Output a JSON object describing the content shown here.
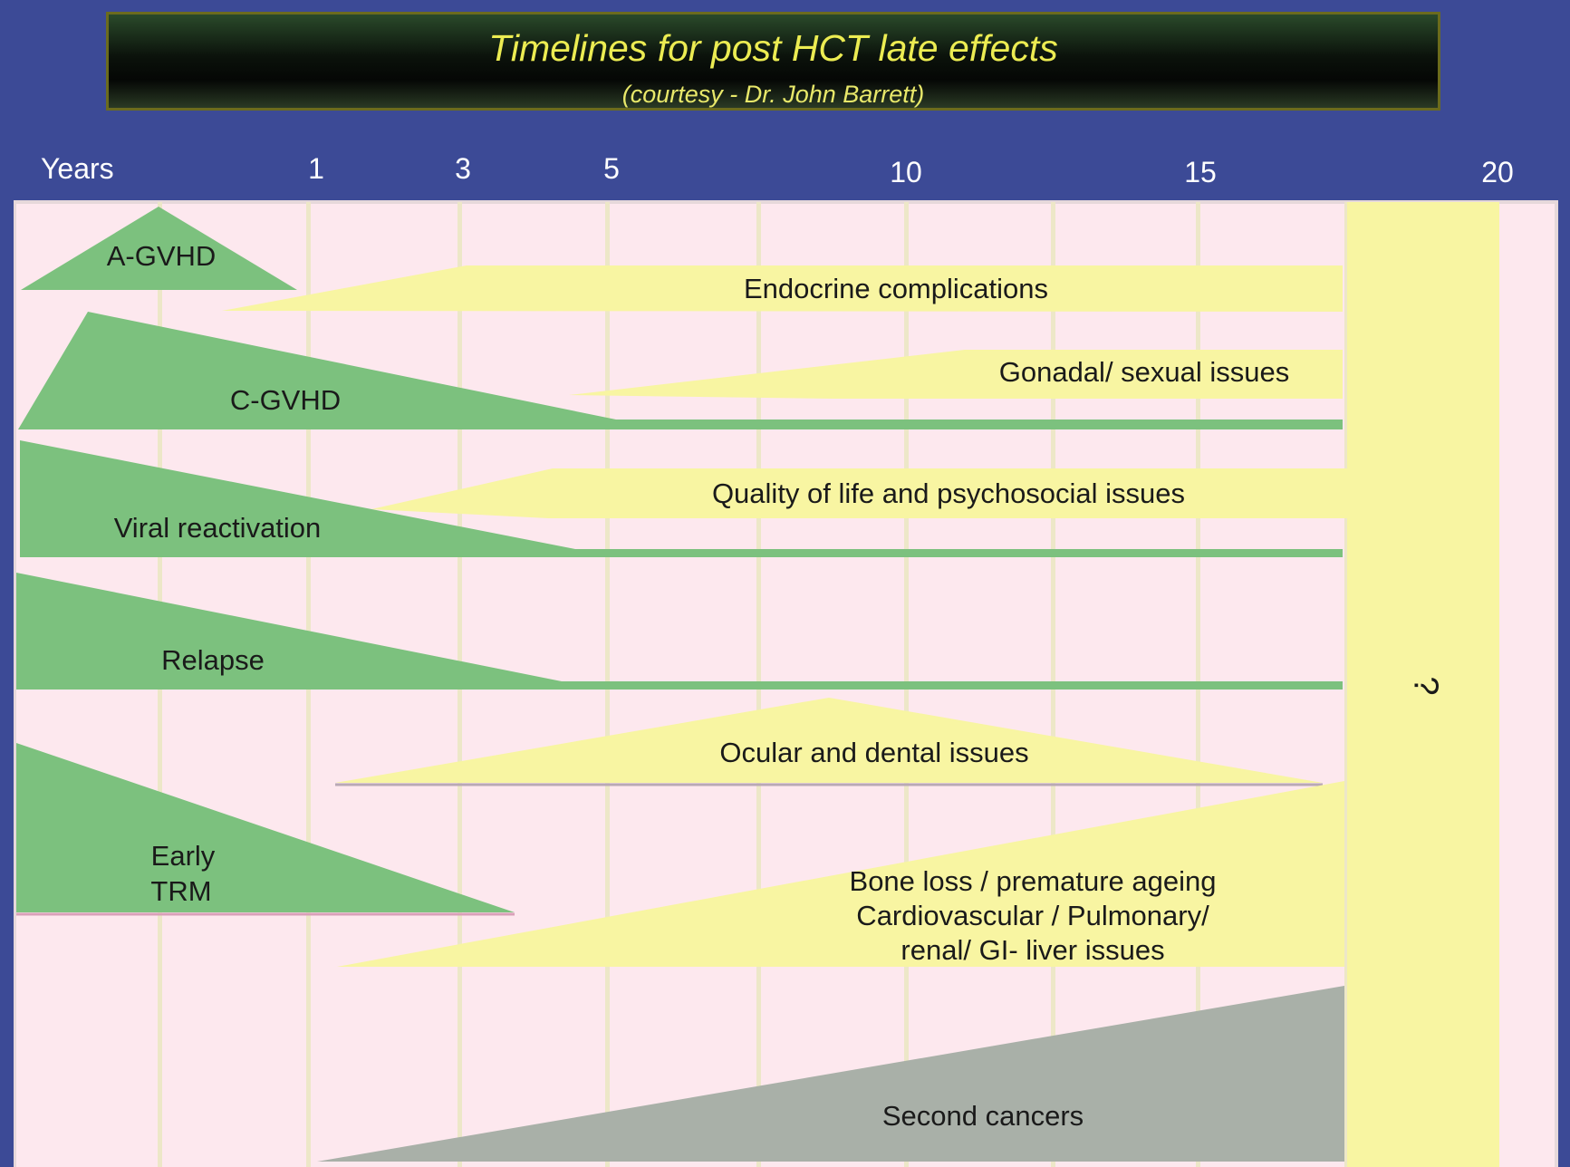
{
  "header": {
    "title": "Timelines for post HCT late effects",
    "subtitle": "(courtesy - Dr. John Barrett)"
  },
  "axis": {
    "label": "Years",
    "ticks": [
      "1",
      "3",
      "5",
      "10",
      "15",
      "20"
    ]
  },
  "colors": {
    "background": "#3c4a96",
    "plot_area": "#fde8ee",
    "early_effects_green": "#7cc17e",
    "late_effects_yellow": "#f8f5a2",
    "second_cancers_gray": "#a9b0a8",
    "title_text": "#ecec52"
  },
  "effects": {
    "a_gvhd": "A-GVHD",
    "endocrine": "Endocrine complications",
    "c_gvhd": "C-GVHD",
    "gonadal": "Gonadal/ sexual issues",
    "quality_of_life": "Quality of life and psychosocial issues",
    "viral": "Viral reactivation",
    "relapse": "Relapse",
    "ocular_dental": "Ocular and dental issues",
    "early_trm_line1": "Early",
    "early_trm_line2": "TRM",
    "bone_line1": "Bone loss / premature ageing",
    "bone_line2": "Cardiovascular / Pulmonary/",
    "bone_line3": "renal/ GI- liver issues",
    "second_cancers": "Second cancers",
    "unknown_future": "?"
  }
}
